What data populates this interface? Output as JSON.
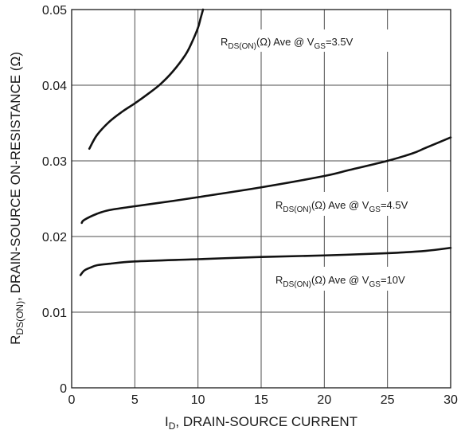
{
  "chart_data": {
    "type": "line",
    "xlabel": {
      "main": "I",
      "sub": "D",
      "rest": ", DRAIN-SOURCE CURRENT"
    },
    "ylabel": {
      "main": "R",
      "sub": "DS(ON)",
      "rest": ", DRAIN-SOURCE ON-RESISTANCE (Ω)"
    },
    "xlim": [
      0,
      30
    ],
    "ylim": [
      0,
      0.05
    ],
    "x_ticks": [
      0,
      5,
      10,
      15,
      20,
      25,
      30
    ],
    "x_tick_labels": [
      "0",
      "5",
      "10",
      "15",
      "20",
      "25",
      "30"
    ],
    "y_ticks": [
      0,
      0.01,
      0.02,
      0.03,
      0.04,
      0.05
    ],
    "y_tick_labels": [
      "0",
      "0.01",
      "0.02",
      "0.03",
      "0.04",
      "0.05"
    ],
    "grid": true,
    "legend": "none",
    "series": [
      {
        "label": {
          "r": "R",
          "rsub": "DS(ON)",
          "mid": "(Ω) Ave @ V",
          "vsub": "GS",
          "end": "=3.5V"
        },
        "x": [
          1.4,
          2,
          3,
          4,
          5,
          6,
          7,
          8,
          9,
          9.5,
          10,
          10.2,
          10.4
        ],
        "y": [
          0.0316,
          0.0334,
          0.0352,
          0.0365,
          0.0376,
          0.0388,
          0.0401,
          0.0418,
          0.044,
          0.0456,
          0.0476,
          0.0488,
          0.05
        ]
      },
      {
        "label": {
          "r": "R",
          "rsub": "DS(ON)",
          "mid": "(Ω) Ave @ V",
          "vsub": "GS",
          "end": "=4.5V"
        },
        "x": [
          0.8,
          1,
          2,
          3,
          5,
          8,
          10,
          15,
          20,
          22,
          25,
          27,
          28,
          30
        ],
        "y": [
          0.0218,
          0.0222,
          0.023,
          0.0235,
          0.024,
          0.0247,
          0.0252,
          0.0265,
          0.028,
          0.0288,
          0.03,
          0.031,
          0.0317,
          0.0331
        ]
      },
      {
        "label": {
          "r": "R",
          "rsub": "DS(ON)",
          "mid": "(Ω) Ave @ V",
          "vsub": "GS",
          "end": "=10V"
        },
        "x": [
          0.7,
          1,
          1.5,
          2,
          3,
          5,
          10,
          15,
          20,
          25,
          28,
          30
        ],
        "y": [
          0.0149,
          0.0155,
          0.0159,
          0.0162,
          0.0164,
          0.0167,
          0.017,
          0.0173,
          0.0175,
          0.0178,
          0.0181,
          0.0185
        ]
      }
    ]
  }
}
